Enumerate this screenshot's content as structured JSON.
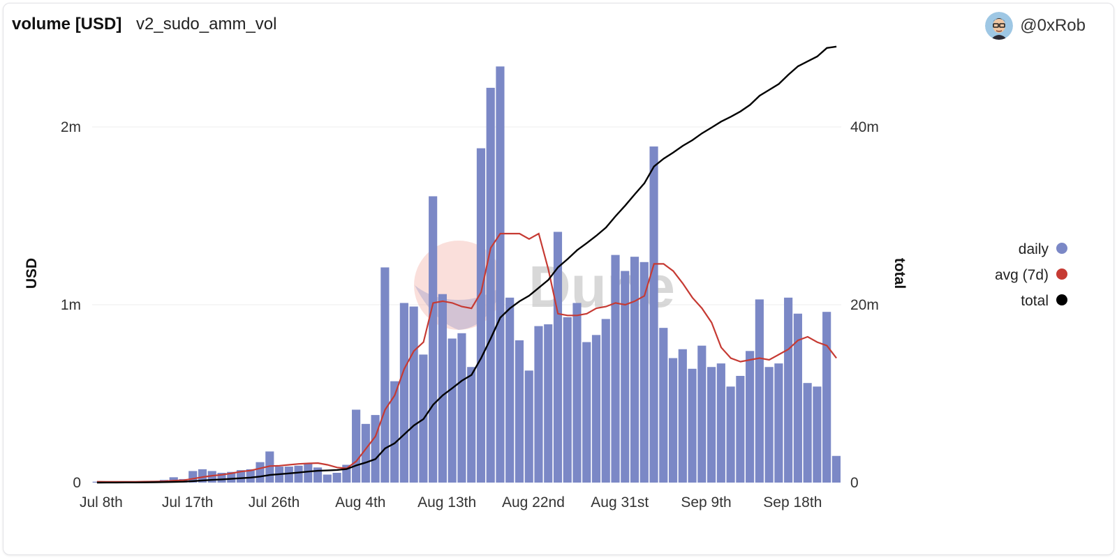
{
  "header": {
    "title": "volume [USD]",
    "subtitle": "v2_sudo_amm_vol",
    "author": "@0xRob"
  },
  "watermark": "Dune",
  "colors": {
    "daily": "#7b88c6",
    "avg": "#c63a33",
    "total": "#000000"
  },
  "chart_data": {
    "type": "bar",
    "title": "volume [USD]",
    "ylabel": "USD",
    "y2label": "total",
    "ylim": [
      0,
      2400000
    ],
    "y2lim": [
      0,
      48000000
    ],
    "yticks": [
      "0",
      "1m",
      "2m"
    ],
    "y2ticks": [
      "0",
      "20m",
      "40m"
    ],
    "x_tick_labels": [
      "Jul 8th",
      "Jul 17th",
      "Jul 26th",
      "Aug 4th",
      "Aug 13th",
      "Aug 22nd",
      "Aug 31st",
      "Sep 9th",
      "Sep 18th"
    ],
    "legend": {
      "position": "right",
      "entries": [
        "daily",
        "avg (7d)",
        "total"
      ]
    },
    "grid": true,
    "x_start": "Jul 8th",
    "series": [
      {
        "name": "daily",
        "type": "bar",
        "values": [
          5000,
          3000,
          4000,
          5000,
          6000,
          8000,
          10000,
          15000,
          30000,
          20000,
          65000,
          75000,
          65000,
          55000,
          60000,
          70000,
          75000,
          115000,
          175000,
          90000,
          90000,
          95000,
          105000,
          85000,
          45000,
          55000,
          100000,
          410000,
          330000,
          380000,
          1210000,
          570000,
          1010000,
          990000,
          720000,
          1610000,
          1060000,
          810000,
          840000,
          650000,
          1880000,
          2220000,
          2340000,
          1040000,
          800000,
          630000,
          880000,
          890000,
          1410000,
          930000,
          1010000,
          790000,
          830000,
          920000,
          1280000,
          1190000,
          1270000,
          1240000,
          1890000,
          870000,
          700000,
          750000,
          640000,
          770000,
          650000,
          670000,
          540000,
          600000,
          740000,
          1030000,
          650000,
          670000,
          1040000,
          950000,
          560000,
          540000,
          960000,
          150000
        ]
      },
      {
        "name": "avg (7d)",
        "type": "line",
        "values": [
          5000,
          4500,
          4300,
          4500,
          4800,
          5300,
          6000,
          7300,
          11000,
          13000,
          22000,
          31000,
          39000,
          44000,
          52000,
          62000,
          68000,
          80000,
          93000,
          95000,
          100000,
          105000,
          108000,
          110000,
          100000,
          85000,
          80000,
          120000,
          190000,
          260000,
          410000,
          490000,
          640000,
          740000,
          790000,
          1010000,
          1020000,
          1010000,
          990000,
          980000,
          1070000,
          1320000,
          1400000,
          1400000,
          1400000,
          1370000,
          1400000,
          1200000,
          950000,
          940000,
          940000,
          950000,
          980000,
          990000,
          1010000,
          1000000,
          1020000,
          1050000,
          1230000,
          1230000,
          1190000,
          1120000,
          1040000,
          980000,
          900000,
          760000,
          700000,
          680000,
          690000,
          700000,
          690000,
          720000,
          750000,
          800000,
          820000,
          790000,
          770000,
          700000
        ]
      },
      {
        "name": "total",
        "type": "line",
        "values": [
          0,
          5000,
          8000,
          13000,
          19000,
          27000,
          37000,
          52000,
          82000,
          102000,
          167000,
          242000,
          307000,
          362000,
          422000,
          492000,
          567000,
          682000,
          857000,
          947000,
          1037000,
          1132000,
          1237000,
          1322000,
          1367000,
          1422000,
          1522000,
          1932000,
          2262000,
          2642000,
          3852000,
          4422000,
          5432000,
          6422000,
          7142000,
          8752000,
          9812000,
          10622000,
          11462000,
          12112000,
          13992000,
          16212000,
          18552000,
          19592000,
          20392000,
          21022000,
          21902000,
          22792000,
          24202000,
          25132000,
          26142000,
          26932000,
          27762000,
          28682000,
          29962000,
          31152000,
          32422000,
          33662000,
          35552000,
          36422000,
          37122000,
          37872000,
          38512000,
          39282000,
          39932000,
          40602000,
          41142000,
          41742000,
          42482000,
          43512000,
          44162000,
          44832000,
          45872000,
          46822000,
          47382000,
          47922000,
          48882000,
          49032000
        ]
      }
    ]
  }
}
